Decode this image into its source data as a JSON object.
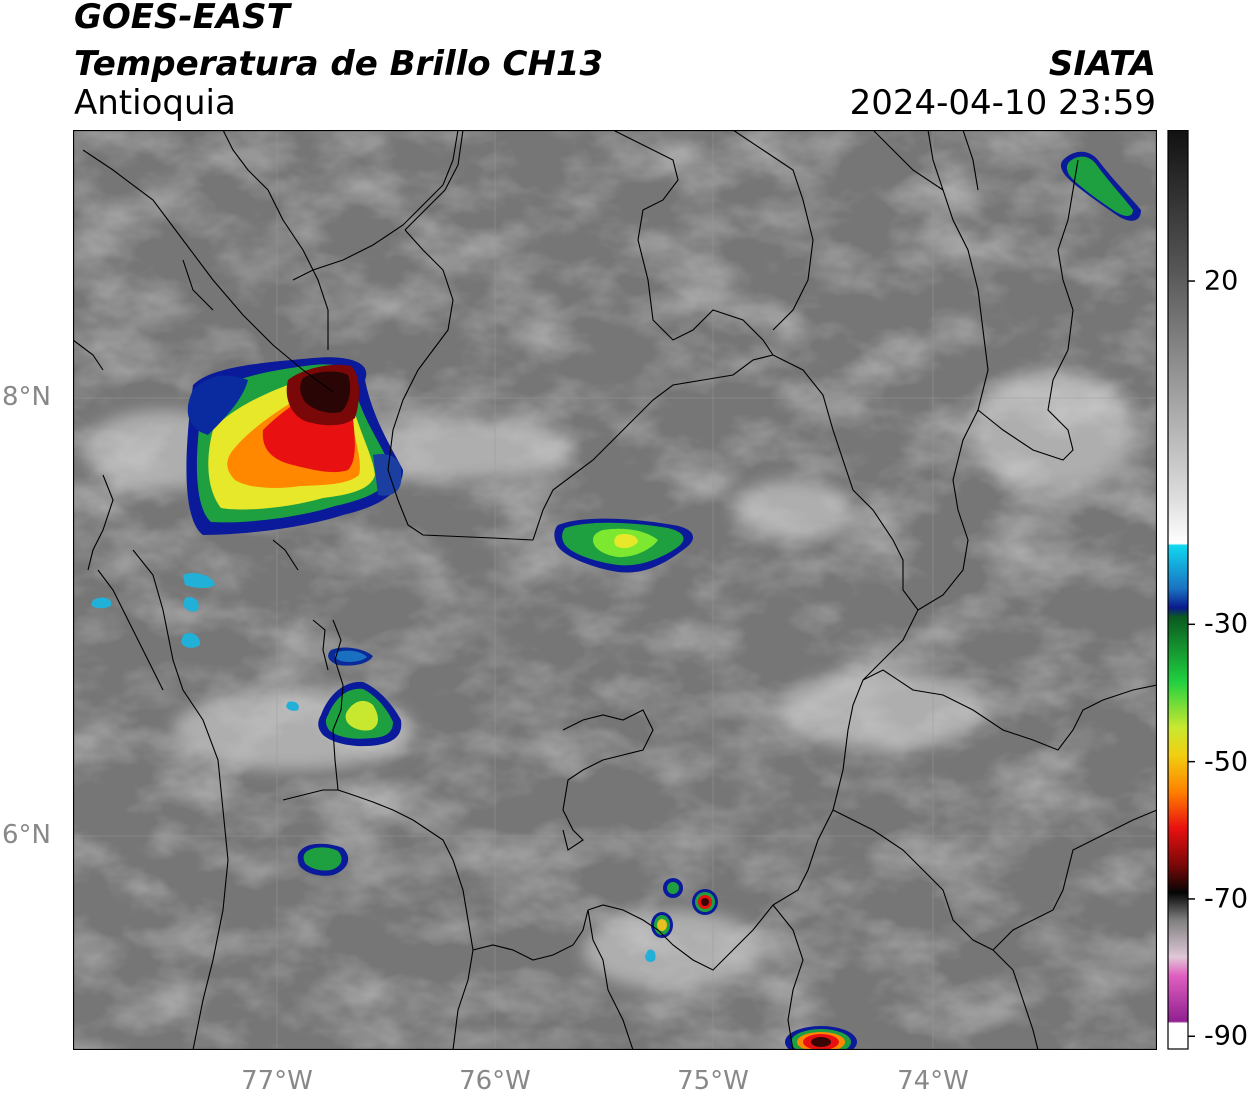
{
  "header": {
    "satellite": "GOES-EAST",
    "product": "Temperatura de Brillo CH13",
    "region": "Antioquia",
    "agency": "SIATA",
    "datetime": "2024-04-10 23:59"
  },
  "axes": {
    "lat_labels": [
      "8°N",
      "6°N"
    ],
    "lon_labels": [
      "77°W",
      "76°W",
      "75°W",
      "74°W"
    ]
  },
  "colorbar": {
    "tick_labels": [
      "20",
      "-30",
      "-50",
      "-70",
      "-90"
    ],
    "tick_values": [
      20,
      -30,
      -50,
      -70,
      -90
    ],
    "range": [
      -92,
      42
    ]
  }
}
